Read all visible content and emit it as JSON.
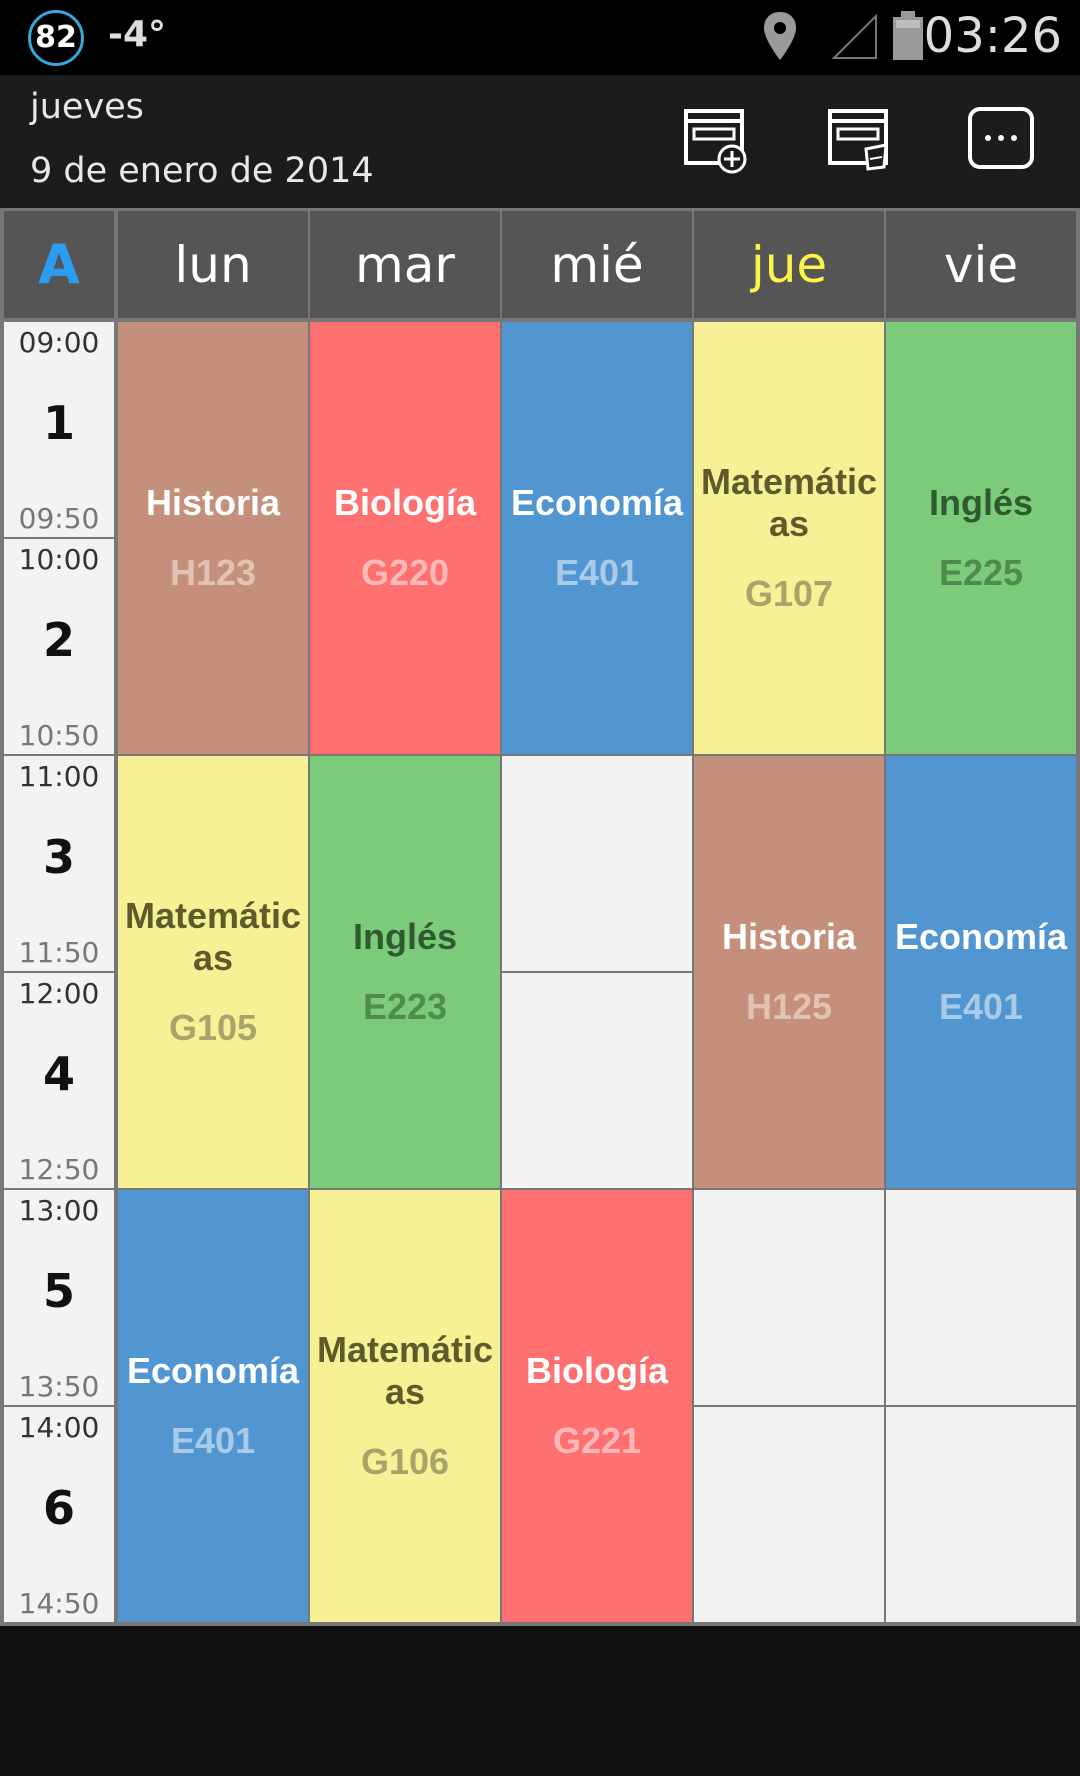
{
  "status_bar": {
    "badge": "82",
    "temperature": "-4°",
    "time": "03:26",
    "icons": [
      "location-icon",
      "signal-icon",
      "battery-icon"
    ]
  },
  "header": {
    "weekday": "jueves",
    "date": "9 de enero de 2014",
    "actions": [
      "add-event-icon",
      "edit-event-icon",
      "more-icon"
    ]
  },
  "week": {
    "label": "A",
    "days": [
      "lun",
      "mar",
      "mié",
      "jue",
      "vie"
    ],
    "today": "jue"
  },
  "periods": [
    {
      "num": "1",
      "start": "09:00",
      "end": "09:50"
    },
    {
      "num": "2",
      "start": "10:00",
      "end": "10:50"
    },
    {
      "num": "3",
      "start": "11:00",
      "end": "11:50"
    },
    {
      "num": "4",
      "start": "12:00",
      "end": "12:50"
    },
    {
      "num": "5",
      "start": "13:00",
      "end": "13:50"
    },
    {
      "num": "6",
      "start": "14:00",
      "end": "14:50"
    }
  ],
  "lessons": [
    {
      "day": "lun",
      "periods": "1–2",
      "subject": "Historia",
      "room": "H123",
      "color": "#c5907b",
      "text": "#ffffff",
      "room_color": "#e2c2b5"
    },
    {
      "day": "mar",
      "periods": "1–2",
      "subject": "Biología",
      "room": "G220",
      "color": "#ff7070",
      "text": "#ffffff",
      "room_color": "#ffb8b8"
    },
    {
      "day": "mié",
      "periods": "1–2",
      "subject": "Economía",
      "room": "E401",
      "color": "#5196d0",
      "text": "#ffffff",
      "room_color": "#a9cbe8"
    },
    {
      "day": "jue",
      "periods": "1–2",
      "subject": "Matemátic\nas",
      "room": "G107",
      "color": "#f6f194",
      "text": "#5e5a2c",
      "room_color": "#a8a36a"
    },
    {
      "day": "vie",
      "periods": "1–2",
      "subject": "Inglés",
      "room": "E225",
      "color": "#7bcb7a",
      "text": "#2f5a2f",
      "room_color": "#4f8a4f"
    },
    {
      "day": "lun",
      "periods": "3–4",
      "subject": "Matemátic\nas",
      "room": "G105",
      "color": "#f6f194",
      "text": "#5e5a2c",
      "room_color": "#a8a36a"
    },
    {
      "day": "mar",
      "periods": "3–4",
      "subject": "Inglés",
      "room": "E223",
      "color": "#7bcb7a",
      "text": "#2f5a2f",
      "room_color": "#4f8a4f"
    },
    {
      "day": "jue",
      "periods": "3–4",
      "subject": "Historia",
      "room": "H125",
      "color": "#c5907b",
      "text": "#ffffff",
      "room_color": "#e2c2b5"
    },
    {
      "day": "vie",
      "periods": "3–4",
      "subject": "Economía",
      "room": "E401",
      "color": "#5196d0",
      "text": "#ffffff",
      "room_color": "#a9cbe8"
    },
    {
      "day": "lun",
      "periods": "5–6",
      "subject": "Economía",
      "room": "E401",
      "color": "#5196d0",
      "text": "#ffffff",
      "room_color": "#a9cbe8"
    },
    {
      "day": "mar",
      "periods": "5–6",
      "subject": "Matemátic\nas",
      "room": "G106",
      "color": "#f6f194",
      "text": "#5e5a2c",
      "room_color": "#a8a36a"
    },
    {
      "day": "mié",
      "periods": "5–6",
      "subject": "Biología",
      "room": "G221",
      "color": "#ff7070",
      "text": "#ffffff",
      "room_color": "#ffb8b8"
    }
  ]
}
